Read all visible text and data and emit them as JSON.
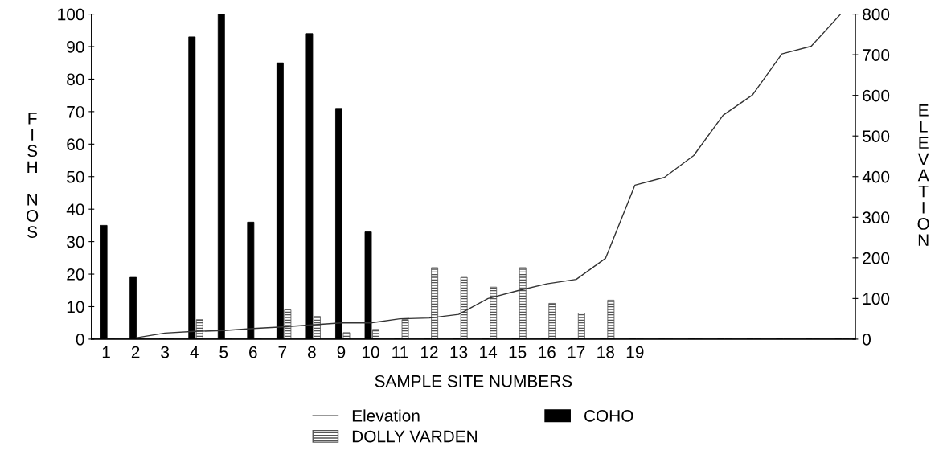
{
  "chart_data": {
    "type": "bar",
    "xlabel": "SAMPLE SITE NUMBERS",
    "ylabel": "FISH NOS",
    "y2label": "ELEVATION",
    "categories": [
      "1",
      "2",
      "3",
      "4",
      "5",
      "6",
      "7",
      "8",
      "9",
      "10",
      "11",
      "12",
      "13",
      "14",
      "15",
      "16",
      "17",
      "18",
      "19",
      null,
      null,
      null,
      null,
      null,
      null,
      null
    ],
    "series": [
      {
        "name": "COHO",
        "color": "#000000",
        "values": [
          35,
          19,
          0,
          93,
          100,
          36,
          85,
          94,
          71,
          33,
          0,
          0,
          0,
          0,
          0,
          0,
          0,
          0,
          0,
          0,
          0,
          0,
          0,
          0,
          0,
          0
        ]
      },
      {
        "name": "DOLLY VARDEN",
        "color": "#555555",
        "values": [
          0,
          0,
          0,
          6,
          0,
          0,
          9,
          7,
          2,
          3,
          6,
          22,
          19,
          16,
          22,
          11,
          8,
          12,
          0,
          0,
          0,
          0,
          0,
          0,
          0,
          0
        ]
      },
      {
        "name": "Elevation",
        "type": "line",
        "axis": "y2",
        "color": "#333333",
        "values": [
          2,
          3,
          15,
          19,
          21,
          26,
          30,
          35,
          40,
          40,
          50,
          52,
          61,
          100,
          119,
          136,
          147,
          199,
          379,
          398,
          452,
          551,
          601,
          702,
          721,
          800
        ]
      }
    ],
    "ylim": [
      0,
      100
    ],
    "yticks": [
      0,
      10,
      20,
      30,
      40,
      50,
      60,
      70,
      80,
      90,
      100
    ],
    "y2lim": [
      0,
      800
    ],
    "y2ticks": [
      0,
      100,
      200,
      300,
      400,
      500,
      600,
      700,
      800
    ],
    "legend": "bottom",
    "grid": false
  }
}
